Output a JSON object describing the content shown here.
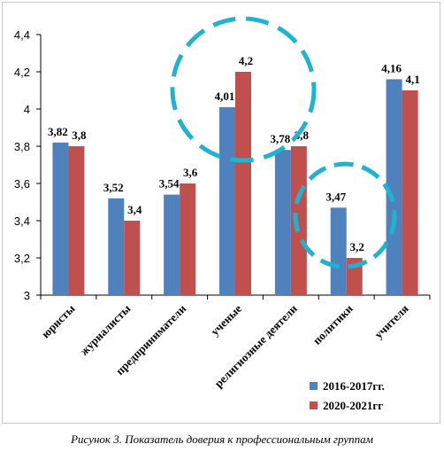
{
  "caption": "Рисунок 3. Показатель доверия к профессиональным группам",
  "chart_data": {
    "type": "bar",
    "categories": [
      "юристы",
      "журналисты",
      "предприниматели",
      "ученые",
      "религиозные деятели",
      "политики",
      "учителя"
    ],
    "series": [
      {
        "name": "2016-2017гг.",
        "values": [
          3.82,
          3.52,
          3.54,
          4.01,
          3.78,
          3.47,
          4.16
        ],
        "labels": [
          "3,82",
          "3,52",
          "3,54",
          "4,01",
          "3,78",
          "3,47",
          "4,16"
        ],
        "color": "#4f81bd"
      },
      {
        "name": "2020-2021гг",
        "values": [
          3.8,
          3.4,
          3.6,
          4.2,
          3.8,
          3.2,
          4.1
        ],
        "labels": [
          "3,8",
          "3,4",
          "3,6",
          "4,2",
          "3,8",
          "3,2",
          "4,1"
        ],
        "color": "#c0504d"
      }
    ],
    "yticks": [
      "3",
      "3,2",
      "3,4",
      "3,6",
      "3,8",
      "4",
      "4,2",
      "4,4"
    ],
    "ylim": [
      3,
      4.4
    ],
    "legend_position": "bottom-right",
    "grid": false,
    "highlight_color": "#1fb3d1"
  }
}
